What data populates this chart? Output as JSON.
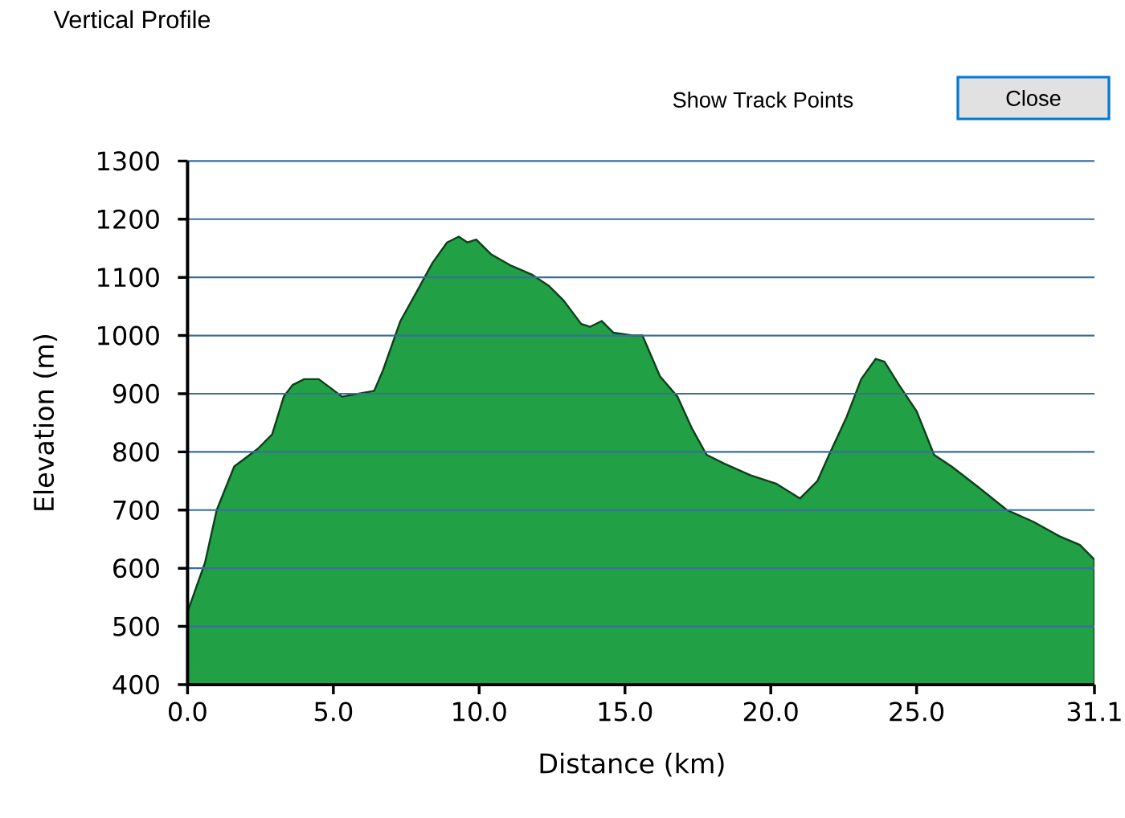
{
  "chart_data": {
    "type": "area",
    "title": "Vertical Profile",
    "xlabel": "Distance (km)",
    "ylabel": "Elevation (m)",
    "annotations": [
      "Show Track Points",
      "Close"
    ],
    "x": [
      0,
      0.6,
      1.0,
      1.6,
      2.4,
      2.9,
      3.3,
      3.6,
      4.0,
      4.5,
      5.3,
      6.4,
      6.7,
      7.3,
      7.8,
      8.4,
      8.9,
      9.3,
      9.6,
      9.9,
      10.4,
      11.1,
      11.8,
      12.4,
      12.9,
      13.5,
      13.8,
      14.2,
      14.6,
      15.3,
      15.6,
      16.2,
      16.8,
      17.3,
      17.8,
      18.4,
      19.3,
      20.2,
      21.0,
      21.6,
      22.0,
      22.6,
      23.1,
      23.6,
      23.9,
      24.4,
      25.0,
      25.6,
      26.2,
      27.1,
      28.1,
      29.0,
      29.9,
      30.6,
      31.1
    ],
    "series": [
      {
        "color": "#22a045",
        "values": [
          525,
          610,
          700,
          775,
          805,
          830,
          895,
          915,
          925,
          925,
          895,
          905,
          940,
          1025,
          1070,
          1125,
          1160,
          1170,
          1160,
          1165,
          1140,
          1120,
          1105,
          1085,
          1060,
          1020,
          1015,
          1025,
          1005,
          1000,
          1000,
          930,
          895,
          840,
          795,
          780,
          760,
          745,
          720,
          750,
          795,
          860,
          925,
          960,
          955,
          915,
          870,
          795,
          775,
          740,
          700,
          680,
          655,
          640,
          615
        ]
      }
    ],
    "xlim": [
      0,
      31.1
    ],
    "ylim": [
      400,
      1300
    ],
    "xticks": [
      {
        "value": 0,
        "label": "0.0"
      },
      {
        "value": 5,
        "label": "5.0"
      },
      {
        "value": 10,
        "label": "10.0"
      },
      {
        "value": 15,
        "label": "15.0"
      },
      {
        "value": 20,
        "label": "20.0"
      },
      {
        "value": 25,
        "label": "25.0"
      },
      {
        "value": 31.1,
        "label": "31.1"
      }
    ],
    "yticks": [
      400,
      500,
      600,
      700,
      800,
      900,
      1000,
      1100,
      1200,
      1300
    ],
    "grid": "y"
  }
}
